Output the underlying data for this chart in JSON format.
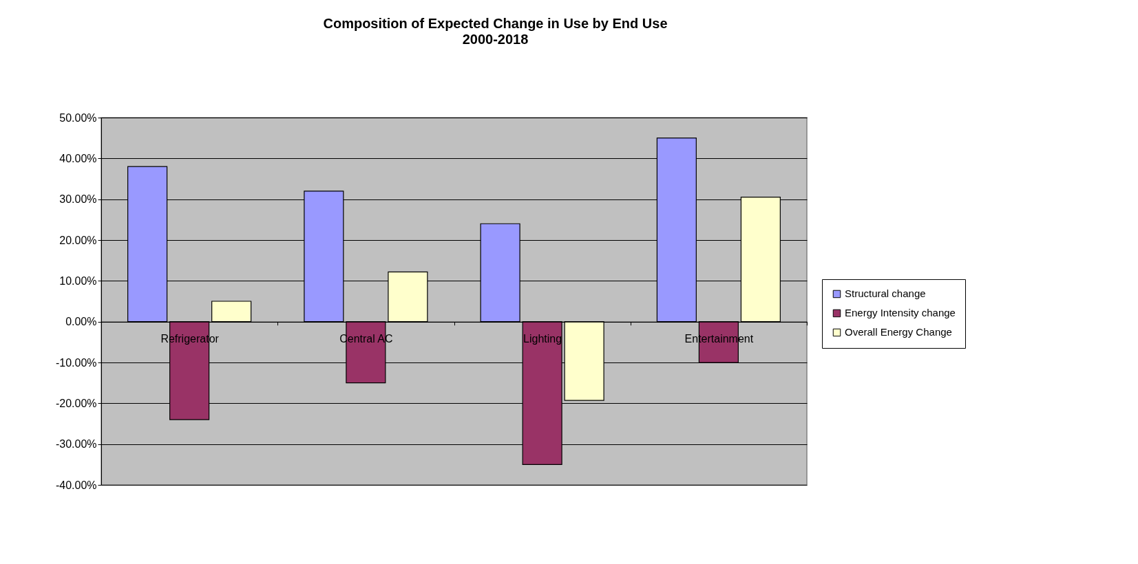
{
  "chart_data": {
    "type": "bar",
    "title": "Composition of Expected Change in Use by End Use",
    "subtitle": "2000-2018",
    "categories": [
      "Refrigerator",
      "Central AC",
      "Lighting",
      "Entertainment"
    ],
    "series": [
      {
        "name": "Structural change",
        "color": "#9999ff",
        "values": [
          38,
          32,
          24,
          45
        ]
      },
      {
        "name": "Energy Intensity change",
        "color": "#993366",
        "values": [
          -24,
          -15,
          -35,
          -10
        ]
      },
      {
        "name": "Overall Energy Change",
        "color": "#ffffcc",
        "values": [
          5,
          12.2,
          -19.3,
          30.5
        ]
      }
    ],
    "ylim": [
      -40,
      50
    ],
    "yticks": [
      {
        "value": -40,
        "label": "-40.00%"
      },
      {
        "value": -30,
        "label": "-30.00%"
      },
      {
        "value": -20,
        "label": "-20.00%"
      },
      {
        "value": -10,
        "label": "-10.00%"
      },
      {
        "value": 0,
        "label": "0.00%"
      },
      {
        "value": 10,
        "label": "10.00%"
      },
      {
        "value": 20,
        "label": "20.00%"
      },
      {
        "value": 30,
        "label": "30.00%"
      },
      {
        "value": 40,
        "label": "40.00%"
      },
      {
        "value": 50,
        "label": "50.00%"
      }
    ],
    "grid": "y",
    "legend": "right"
  }
}
